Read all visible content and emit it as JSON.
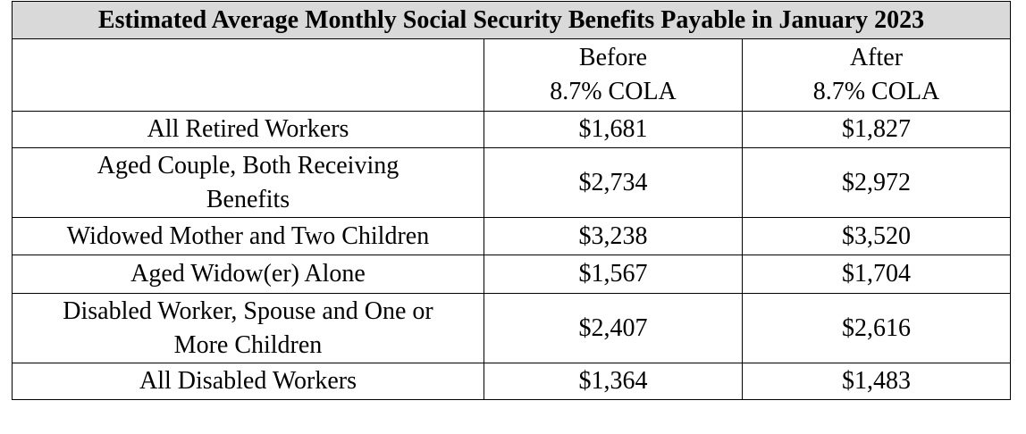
{
  "table": {
    "title": "Estimated Average Monthly Social Security Benefits Payable in January 2023",
    "columns": [
      "",
      {
        "line1": "Before",
        "line2": "8.7% COLA"
      },
      {
        "line1": "After",
        "line2": "8.7% COLA"
      }
    ],
    "rows": [
      {
        "label": [
          "All Retired Workers"
        ],
        "before": "$1,681",
        "after": "$1,827"
      },
      {
        "label": [
          "Aged Couple, Both Receiving",
          "Benefits"
        ],
        "before": "$2,734",
        "after": "$2,972"
      },
      {
        "label": [
          "Widowed Mother and Two Children"
        ],
        "before": "$3,238",
        "after": "$3,520"
      },
      {
        "label": [
          "Aged Widow(er) Alone"
        ],
        "before": "$1,567",
        "after": "$1,704"
      },
      {
        "label": [
          "Disabled Worker, Spouse and One or",
          "More Children"
        ],
        "before": "$2,407",
        "after": "$2,616"
      },
      {
        "label": [
          "All Disabled Workers"
        ],
        "before": "$1,364",
        "after": "$1,483"
      }
    ]
  }
}
